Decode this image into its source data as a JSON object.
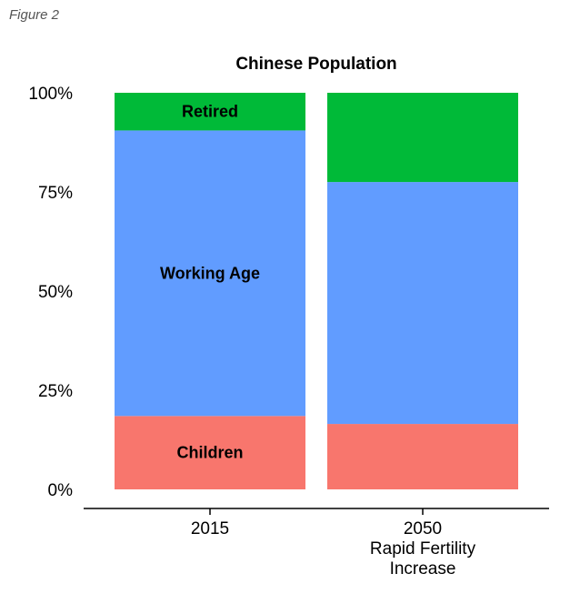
{
  "figure_label": "Figure 2",
  "chart_data": {
    "type": "bar",
    "stacked": true,
    "title": "Chinese Population",
    "categories": [
      "2015",
      "2050 Rapid Fertility Increase"
    ],
    "category_label_lines": [
      [
        "2015"
      ],
      [
        "2050",
        "Rapid Fertility",
        "Increase"
      ]
    ],
    "series": [
      {
        "name": "Children",
        "color": "#f8766d",
        "values": [
          18.5,
          16.5
        ],
        "labels": [
          "Children",
          ""
        ]
      },
      {
        "name": "Working Age",
        "color": "#619cff",
        "values": [
          72,
          61
        ],
        "labels": [
          "Working Age",
          ""
        ]
      },
      {
        "name": "Retired",
        "color": "#00ba38",
        "values": [
          9.5,
          22.5
        ],
        "labels": [
          "Retired",
          ""
        ]
      }
    ],
    "ylim": [
      0,
      100
    ],
    "yticks": [
      "0%",
      "25%",
      "50%",
      "75%",
      "100%"
    ],
    "ytick_values": [
      0,
      25,
      50,
      75,
      100
    ],
    "grid": false,
    "legend": "none"
  }
}
